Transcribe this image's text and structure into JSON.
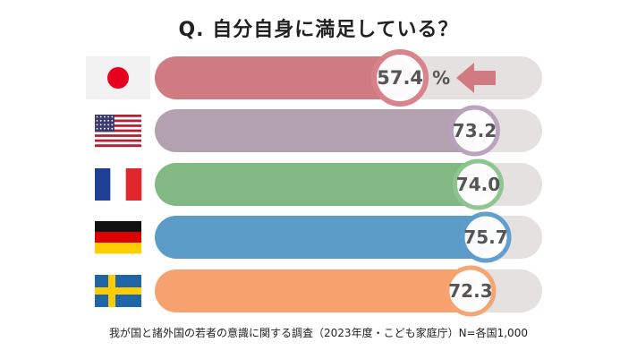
{
  "title": "Q. 自分自身に満足している？",
  "source": "我が国と諸外国の若者の意識に関する調査（2023年度・こども家庭庁）N=各国1,000",
  "chart_data": {
    "type": "bar",
    "orientation": "horizontal",
    "xlim": [
      0,
      100
    ],
    "unit": "%",
    "categories": [
      "日本",
      "アメリカ",
      "フランス",
      "ドイツ",
      "スウェーデン"
    ],
    "values": [
      57.4,
      73.2,
      74.0,
      75.7,
      72.3
    ],
    "labels": [
      "57.4",
      "73.2",
      "74.0",
      "75.7",
      "72.3"
    ],
    "colors": [
      "#D07A82",
      "#B4A1B0",
      "#82B883",
      "#5B9BC7",
      "#F7A26E"
    ],
    "ring_colors": [
      "#D9828A",
      "#B8A2BC",
      "#8DC58F",
      "#5E9CCE",
      "#F6A46F"
    ],
    "highlight_index": 0,
    "track_color": "#E4E1E0",
    "arrow_color": "#D07A82",
    "flags": [
      "japan-flag",
      "usa-flag",
      "france-flag",
      "germany-flag",
      "sweden-flag"
    ]
  }
}
